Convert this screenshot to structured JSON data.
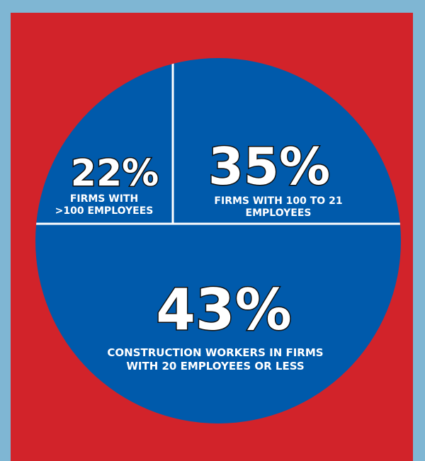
{
  "chart_data": {
    "type": "pie",
    "slices": [
      {
        "value": 22,
        "percent_label": "22%",
        "label_lines": [
          "FIRMS WITH",
          ">100 EMPLOYEES"
        ]
      },
      {
        "value": 35,
        "percent_label": "35%",
        "label_lines": [
          "FIRMS WITH 100 TO 21",
          "EMPLOYEES"
        ]
      },
      {
        "value": 43,
        "percent_label": "43%",
        "label_lines": [
          "CONSTRUCTION WORKERS IN FIRMS",
          "WITH 20 EMPLOYEES OR LESS"
        ]
      }
    ]
  },
  "colors": {
    "background_border": "#7fb6d3",
    "panel": "#d2232a",
    "pie_fill": "#005aab",
    "divider": "#ffffff",
    "text": "#ffffff"
  }
}
